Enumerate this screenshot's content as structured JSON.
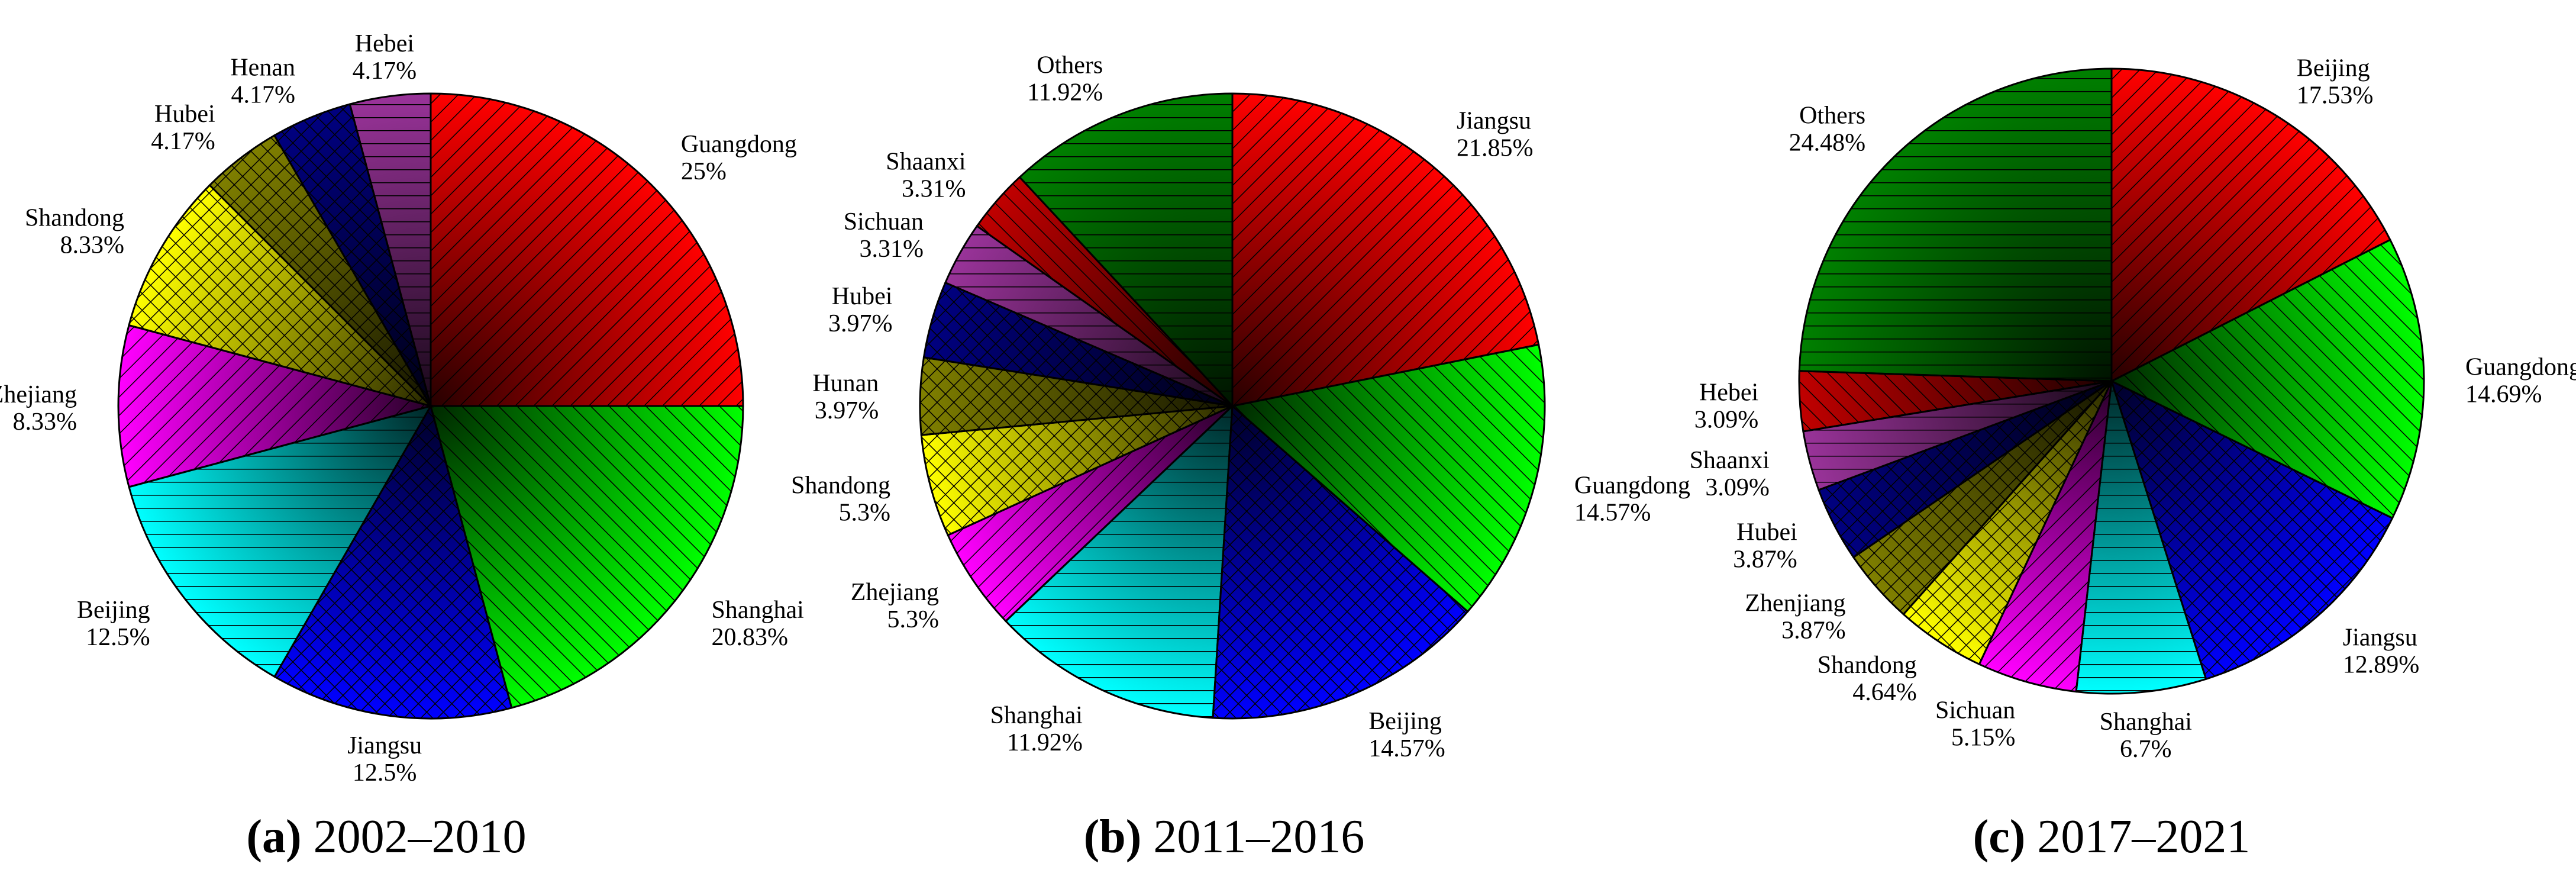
{
  "chart_data": [
    {
      "type": "pie",
      "panel": "(a)",
      "title": "2002–2010",
      "categories": [
        "Guangdong",
        "Shanghai",
        "Jiangsu",
        "Beijing",
        "Zhejiang",
        "Shandong",
        "Hubei",
        "Henan",
        "Hebei"
      ],
      "values": [
        25,
        20.83,
        12.5,
        12.5,
        8.33,
        8.33,
        4.17,
        4.17,
        4.17
      ],
      "value_labels": [
        "25%",
        "20.83%",
        "12.5%",
        "12.5%",
        "8.33%",
        "8.33%",
        "4.17%",
        "4.17%",
        "4.17%"
      ],
      "colors": [
        "#ff0000",
        "#00ff00",
        "#0000ff",
        "#00ffff",
        "#ff00ff",
        "#ffff00",
        "#808000",
        "#000080",
        "#993399"
      ]
    },
    {
      "type": "pie",
      "panel": "(b)",
      "title": "2011–2016",
      "categories": [
        "Jiangsu",
        "Guangdong",
        "Beijing",
        "Shanghai",
        "Zhejiang",
        "Shandong",
        "Hunan",
        "Hubei",
        "Sichuan",
        "Shaanxi",
        "Others"
      ],
      "values": [
        21.85,
        14.57,
        14.57,
        11.92,
        5.3,
        5.3,
        3.97,
        3.97,
        3.31,
        3.31,
        11.92
      ],
      "value_labels": [
        "21.85%",
        "14.57%",
        "14.57%",
        "11.92%",
        "5.3%",
        "5.3%",
        "3.97%",
        "3.97%",
        "3.31%",
        "3.31%",
        "11.92%"
      ],
      "colors": [
        "#ff0000",
        "#00ff00",
        "#0000ff",
        "#00ffff",
        "#ff00ff",
        "#ffff00",
        "#808000",
        "#000080",
        "#993399",
        "#c00000",
        "#008000"
      ]
    },
    {
      "type": "pie",
      "panel": "(c)",
      "title": "2017–2021",
      "categories": [
        "Beijing",
        "Guangdong",
        "Jiangsu",
        "Shanghai",
        "Sichuan",
        "Shandong",
        "Zhenjiang",
        "Hubei",
        "Shaanxi",
        "Hebei",
        "Others"
      ],
      "values": [
        17.53,
        14.69,
        12.89,
        6.7,
        5.15,
        4.64,
        3.87,
        3.87,
        3.09,
        3.09,
        24.48
      ],
      "value_labels": [
        "17.53%",
        "14.69%",
        "12.89%",
        "6.7%",
        "5.15%",
        "4.64%",
        "3.87%",
        "3.87%",
        "3.09%",
        "3.09%",
        "24.48%"
      ],
      "colors": [
        "#ff0000",
        "#00ff00",
        "#0000ff",
        "#00ffff",
        "#ff00ff",
        "#ffff00",
        "#808000",
        "#000080",
        "#993399",
        "#c00000",
        "#008000"
      ]
    }
  ]
}
